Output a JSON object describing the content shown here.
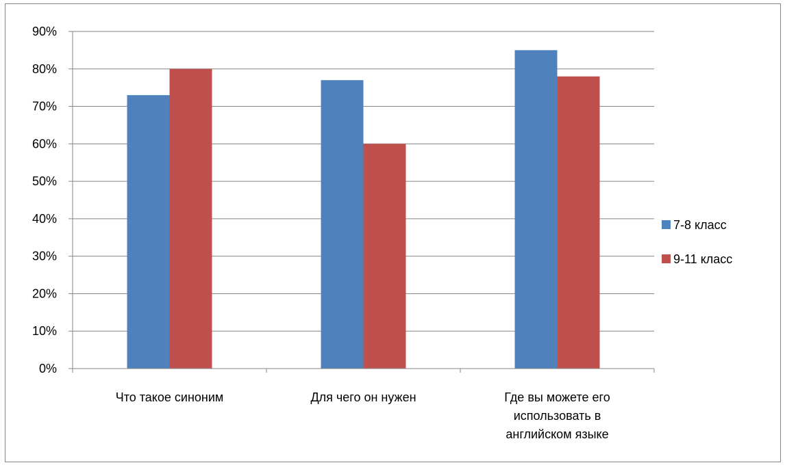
{
  "chart_data": {
    "type": "bar",
    "title": "",
    "xlabel": "",
    "ylabel": "",
    "categories": [
      [
        "Что такое синоним"
      ],
      [
        "Для чего он нужен"
      ],
      [
        "Где вы можете его",
        "использовать в",
        "английском языке"
      ]
    ],
    "series": [
      {
        "name": "7-8 класс",
        "color": "#4F81BD",
        "values": [
          0.73,
          0.77,
          0.85
        ]
      },
      {
        "name": "9-11 класс",
        "color": "#C0504D",
        "values": [
          0.8,
          0.6,
          0.78
        ]
      }
    ],
    "ylim": [
      0,
      0.9
    ],
    "yticks": [
      0,
      0.1,
      0.2,
      0.3,
      0.4,
      0.5,
      0.6,
      0.7,
      0.8,
      0.9
    ],
    "ytick_labels": [
      "0%",
      "10%",
      "20%",
      "30%",
      "40%",
      "50%",
      "60%",
      "70%",
      "80%",
      "90%"
    ],
    "grid": true,
    "legend_position": "right"
  }
}
